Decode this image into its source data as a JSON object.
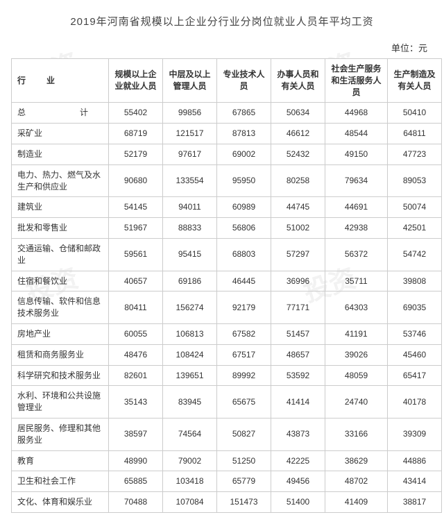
{
  "title": "2019年河南省规模以上企业分行业分岗位就业人员年平均工资",
  "unit_label": "单位：元",
  "watermark_text": "投资",
  "columns": [
    "行　　业",
    "规模以上企业就业人员",
    "中层及以上管理人员",
    "专业技术人员",
    "办事人员和有关人员",
    "社会生产服务和生活服务人员",
    "生产制造及有关人员"
  ],
  "rows": [
    {
      "label": "总　　计",
      "is_total": true,
      "values": [
        55402,
        99856,
        67865,
        50634,
        44968,
        50410
      ]
    },
    {
      "label": "采矿业",
      "values": [
        68719,
        121517,
        87813,
        46612,
        48544,
        64811
      ]
    },
    {
      "label": "制造业",
      "values": [
        52179,
        97617,
        69002,
        52432,
        49150,
        47723
      ]
    },
    {
      "label": "电力、热力、燃气及水生产和供应业",
      "values": [
        90680,
        133554,
        95950,
        80258,
        79634,
        89053
      ]
    },
    {
      "label": "建筑业",
      "values": [
        54145,
        94011,
        60989,
        44745,
        44691,
        50074
      ]
    },
    {
      "label": "批发和零售业",
      "values": [
        51967,
        88833,
        56806,
        51002,
        42938,
        42501
      ]
    },
    {
      "label": "交通运输、仓储和邮政业",
      "values": [
        59561,
        95415,
        68803,
        57297,
        56372,
        54742
      ]
    },
    {
      "label": "住宿和餐饮业",
      "values": [
        40657,
        69186,
        46445,
        36996,
        35711,
        39808
      ]
    },
    {
      "label": "信息传输、软件和信息技术服务业",
      "values": [
        80411,
        156274,
        92179,
        77171,
        64303,
        69035
      ]
    },
    {
      "label": "房地产业",
      "values": [
        60055,
        106813,
        67582,
        51457,
        41191,
        53746
      ]
    },
    {
      "label": "租赁和商务服务业",
      "values": [
        48476,
        108424,
        67517,
        48657,
        39026,
        45460
      ]
    },
    {
      "label": "科学研究和技术服务业",
      "values": [
        82601,
        139651,
        89992,
        53592,
        48059,
        65417
      ]
    },
    {
      "label": "水利、环境和公共设施管理业",
      "values": [
        35143,
        83945,
        65675,
        41414,
        24740,
        40178
      ]
    },
    {
      "label": "居民服务、修理和其他服务业",
      "values": [
        38597,
        74564,
        50827,
        43873,
        33166,
        39309
      ]
    },
    {
      "label": "教育",
      "values": [
        48990,
        79002,
        51250,
        42225,
        38629,
        44886
      ]
    },
    {
      "label": "卫生和社会工作",
      "values": [
        65885,
        103418,
        65779,
        49456,
        48702,
        43414
      ]
    },
    {
      "label": "文化、体育和娱乐业",
      "values": [
        70488,
        107084,
        151473,
        51400,
        41409,
        38817
      ]
    }
  ],
  "style": {
    "border_color": "#cccccc",
    "text_color": "#333333",
    "title_color": "#444444",
    "background_color": "#ffffff",
    "watermark_color": "#f2f2f2",
    "title_fontsize": 15,
    "cell_fontsize": 12,
    "unit_fontsize": 13
  }
}
